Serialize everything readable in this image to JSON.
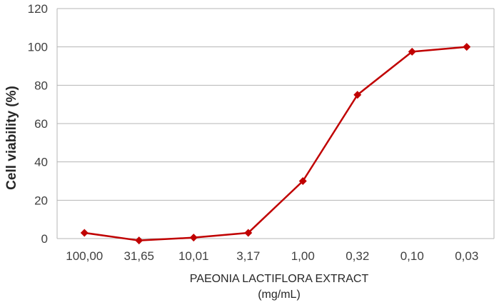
{
  "chart_data": {
    "type": "line",
    "xlabel": "PAEONIA LACTIFLORA EXTRACT",
    "xlabel_unit": "(mg/mL)",
    "ylabel": "Cell viability (%)",
    "categories": [
      "100,00",
      "31,65",
      "10,01",
      "3,17",
      "1,00",
      "0,32",
      "0,10",
      "0,03"
    ],
    "series": [
      {
        "values": [
          3,
          -1,
          0.5,
          3,
          30,
          75,
          97.5,
          100
        ],
        "color": "#c00000"
      }
    ],
    "ylim": [
      0,
      120
    ],
    "yticks": [
      0,
      20,
      40,
      60,
      80,
      100,
      120
    ],
    "grid": true,
    "legend": "none"
  }
}
